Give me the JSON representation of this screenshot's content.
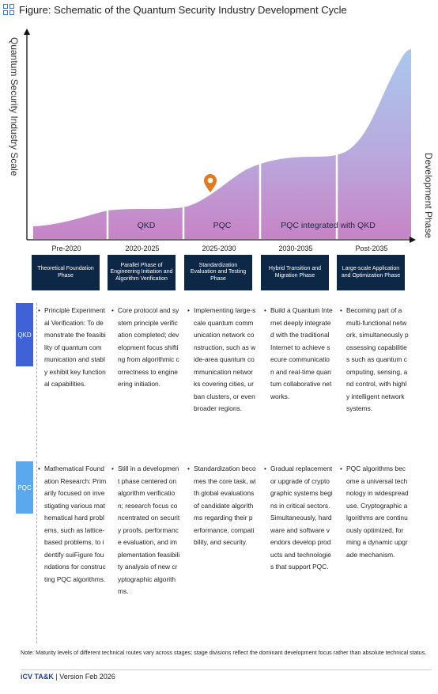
{
  "title": "Figure: Schematic of the Quantum Security Industry Development Cycle",
  "chart": {
    "y_axis_label": "Quantum Security Industry Scale",
    "x_axis_label": "Development Phase",
    "area_labels": [
      "QKD",
      "PQC",
      "PQC integrated with QKD"
    ],
    "colors": {
      "top": "#a9c8ee",
      "bottom": "#c783c5",
      "phase_box": "#0d2746"
    }
  },
  "chart_data": {
    "type": "area",
    "x": [
      "Pre-2020",
      "2020-2025",
      "2025-2030",
      "2030-2035",
      "Post-2035"
    ],
    "ylabel": "Quantum Security Industry Scale",
    "xlabel": "Development Phase",
    "series": [
      {
        "values": [
          1,
          2,
          5,
          4,
          12
        ]
      }
    ]
  },
  "periods": [
    "Pre-2020",
    "2020-2025",
    "2025-2030",
    "2030-2035",
    "Post-2035"
  ],
  "phases": [
    "Theoretical Foundation Phase",
    "Parallel Phase of Engineering Initiation and Algorithm Verification",
    "Standardization Evaluation and Testing Phase",
    "Hybrid Transition and Migration Phase",
    "Large-scale Application and Optimization Phase"
  ],
  "rows": [
    {
      "tag": "QKD",
      "cells": [
        "Principle Experimental Verification: To demonstrate the feasibility of quantum communication and stably exhibit key functional capabilities.",
        "Core protocol and system principle verification completed; development focus shifting from algorithmic correctness to engineering initiation.",
        "Implementing large-scale quantum communication network construction, such as wide-area quantum communication networks covering cities, urban clusters, or even broader regions.",
        "Build a Quantum Internet deeply integrated with the traditional Internet to achieve secure communication and real-time quantum collaborative networks.",
        "Becoming part of a multi-functional network, simultaneously possessing capabilities such as quantum computing, sensing, and control, with highly intelligent network systems."
      ]
    },
    {
      "tag": "PQC",
      "cells": [
        "Mathematical Foundation Research: Primarily focused on investigating various mathematical hard problems, such as lattice-based problems, to identify suiFigure foundations for constructing PQC algorithms.",
        "Still in a development phase centered on algorithm verification; research focus concentrated on security proofs, performance evaluation, and implementation feasibility analysis of new cryptographic algorithms.",
        "Standardization becomes the core task, with global evaluations of candidate algorithms regarding their performance, compatibility, and security.",
        "Gradual replacement or upgrade of cryptographic systems begins in critical sectors. Simultaneously, hardware and software vendors develop products and technologies that support PQC.",
        "PQC algorithms become a universal technology in widespread use. Cryptographic algorithms are continuously optimized, forming a dynamic upgrade mechanism."
      ]
    }
  ],
  "note": "Note: Maturity levels of different technical routes vary across stages; stage divisions reflect the dominant development focus rather than absolute technical status.",
  "footer": {
    "brand": "iCV TA&K",
    "version": "Version Feb 2026"
  }
}
